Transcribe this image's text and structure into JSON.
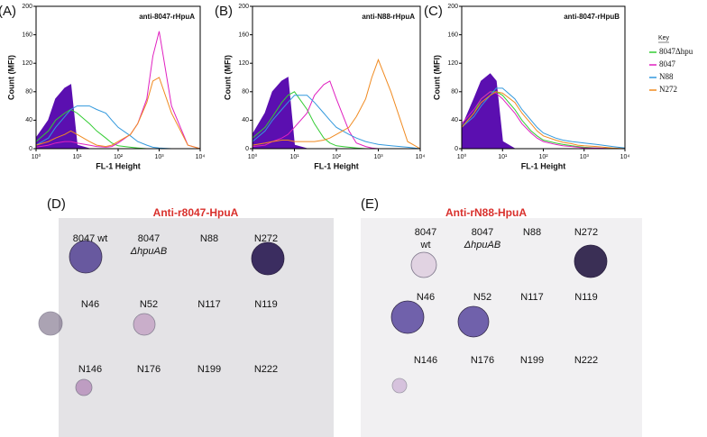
{
  "chart_data": [
    {
      "type": "line",
      "panel": "(A)",
      "title": "anti-8047-rHpuA",
      "xlabel": "FL-1 Height",
      "ylabel": "Count (MFI)",
      "xscale": "log",
      "x": [
        1,
        2,
        3,
        5,
        7,
        10,
        20,
        30,
        50,
        70,
        100,
        200,
        300,
        500,
        700,
        1000,
        2000,
        5000,
        10000
      ],
      "xlim": [
        1,
        10000
      ],
      "ylim": [
        0,
        200
      ],
      "xticks": [
        {
          "value": 1,
          "label": "10⁰"
        },
        {
          "value": 10,
          "label": "10¹"
        },
        {
          "value": 100,
          "label": "10²"
        },
        {
          "value": 1000,
          "label": "10³"
        },
        {
          "value": 10000,
          "label": "10⁴"
        }
      ],
      "yticks": [
        0,
        40,
        80,
        120,
        160,
        200
      ],
      "series": [
        {
          "color": "#5b0fb0",
          "fill": true,
          "values": [
            15,
            40,
            70,
            85,
            90,
            5,
            0,
            0,
            0,
            0,
            0,
            0,
            0,
            0,
            0,
            0,
            0,
            0,
            0
          ]
        },
        {
          "color": "#33cc33",
          "values": [
            10,
            25,
            40,
            50,
            55,
            50,
            35,
            25,
            15,
            8,
            4,
            2,
            1,
            0,
            0,
            0,
            0,
            0,
            0
          ]
        },
        {
          "color": "#e020c0",
          "values": [
            2,
            5,
            8,
            10,
            10,
            8,
            5,
            3,
            2,
            3,
            8,
            20,
            35,
            70,
            130,
            165,
            60,
            5,
            0
          ]
        },
        {
          "color": "#3399dd",
          "values": [
            5,
            15,
            30,
            45,
            55,
            60,
            60,
            55,
            50,
            40,
            30,
            18,
            10,
            5,
            2,
            1,
            0,
            0,
            0
          ]
        },
        {
          "color": "#f08a20",
          "values": [
            5,
            10,
            15,
            20,
            25,
            20,
            10,
            5,
            3,
            5,
            10,
            20,
            35,
            65,
            95,
            100,
            50,
            5,
            0
          ]
        }
      ]
    },
    {
      "type": "line",
      "panel": "(B)",
      "title": "anti-N88-rHpuA",
      "xlabel": "FL-1 Height",
      "ylabel": "Count (MFI)",
      "xscale": "log",
      "x": [
        1,
        2,
        3,
        5,
        7,
        10,
        20,
        30,
        50,
        70,
        100,
        200,
        300,
        500,
        700,
        1000,
        2000,
        5000,
        10000
      ],
      "xlim": [
        1,
        10000
      ],
      "ylim": [
        0,
        200
      ],
      "xticks": [
        {
          "value": 1,
          "label": "10⁰"
        },
        {
          "value": 10,
          "label": "10¹"
        },
        {
          "value": 100,
          "label": "10²"
        },
        {
          "value": 1000,
          "label": "10³"
        },
        {
          "value": 10000,
          "label": "10⁴"
        }
      ],
      "yticks": [
        0,
        40,
        80,
        120,
        160,
        200
      ],
      "series": [
        {
          "color": "#5b0fb0",
          "fill": true,
          "values": [
            20,
            50,
            80,
            95,
            100,
            5,
            0,
            0,
            0,
            0,
            0,
            0,
            0,
            0,
            0,
            0,
            0,
            0,
            0
          ]
        },
        {
          "color": "#33cc33",
          "values": [
            15,
            30,
            45,
            65,
            75,
            80,
            55,
            35,
            15,
            8,
            4,
            2,
            1,
            0,
            0,
            0,
            0,
            0,
            0
          ]
        },
        {
          "color": "#e020c0",
          "values": [
            3,
            5,
            10,
            15,
            20,
            30,
            50,
            75,
            90,
            95,
            70,
            25,
            8,
            3,
            1,
            0,
            0,
            0,
            0
          ]
        },
        {
          "color": "#3399dd",
          "values": [
            10,
            25,
            40,
            55,
            65,
            75,
            75,
            65,
            50,
            40,
            30,
            20,
            15,
            10,
            8,
            6,
            4,
            2,
            0
          ]
        },
        {
          "color": "#f08a20",
          "values": [
            5,
            8,
            10,
            12,
            12,
            10,
            10,
            10,
            12,
            15,
            20,
            30,
            45,
            70,
            100,
            125,
            80,
            10,
            0
          ]
        }
      ]
    },
    {
      "type": "line",
      "panel": "(C)",
      "title": "anti-8047-rHpuB",
      "xlabel": "FL-1 Height",
      "ylabel": "Count (MFI)",
      "xscale": "log",
      "x": [
        1,
        2,
        3,
        5,
        7,
        10,
        20,
        30,
        50,
        70,
        100,
        200,
        300,
        500,
        700,
        1000,
        2000,
        5000,
        10000
      ],
      "xlim": [
        1,
        10000
      ],
      "ylim": [
        0,
        200
      ],
      "xticks": [
        {
          "value": 1,
          "label": "10⁰"
        },
        {
          "value": 10,
          "label": "10¹"
        },
        {
          "value": 100,
          "label": "10²"
        },
        {
          "value": 1000,
          "label": "10³"
        },
        {
          "value": 10000,
          "label": "10⁴"
        }
      ],
      "yticks": [
        0,
        40,
        80,
        120,
        160,
        200
      ],
      "legend_title": "Key",
      "series": [
        {
          "color": "#5b0fb0",
          "fill": true,
          "values": [
            30,
            70,
            95,
            105,
            95,
            10,
            0,
            0,
            0,
            0,
            0,
            0,
            0,
            0,
            0,
            0,
            0,
            0,
            0
          ]
        },
        {
          "name": "8047Δhpu",
          "color": "#33cc33",
          "values": [
            30,
            50,
            70,
            80,
            80,
            75,
            55,
            40,
            25,
            18,
            12,
            8,
            6,
            4,
            3,
            2,
            1,
            0,
            0
          ]
        },
        {
          "name": "8047",
          "color": "#e020c0",
          "values": [
            35,
            55,
            70,
            80,
            78,
            70,
            50,
            35,
            22,
            15,
            10,
            6,
            4,
            3,
            2,
            1,
            1,
            0,
            0
          ]
        },
        {
          "name": "N88",
          "color": "#3399dd",
          "values": [
            30,
            45,
            60,
            75,
            85,
            85,
            70,
            55,
            40,
            30,
            22,
            15,
            12,
            10,
            9,
            8,
            6,
            3,
            1
          ]
        },
        {
          "name": "N272",
          "color": "#f08a20",
          "values": [
            30,
            50,
            65,
            75,
            80,
            78,
            65,
            50,
            35,
            25,
            18,
            12,
            9,
            7,
            5,
            4,
            3,
            1,
            0
          ]
        }
      ]
    }
  ],
  "blots": [
    {
      "panel": "(D)",
      "title": "Anti-r8047-HpuA",
      "samples": [
        [
          "8047 wt"
        ],
        [
          "8047",
          "ΔhpuAB"
        ],
        [
          "N88"
        ],
        [
          "N272"
        ],
        [
          "N46"
        ],
        [
          "N52"
        ],
        [
          "N117"
        ],
        [
          "N119"
        ],
        [
          "N146"
        ],
        [
          "N176"
        ],
        [
          "N199"
        ],
        [
          "N222"
        ]
      ]
    },
    {
      "panel": "(E)",
      "title": "Anti-rN88-HpuA",
      "samples": [
        [
          "8047",
          "wt"
        ],
        [
          "8047",
          "ΔhpuAB"
        ],
        [
          "N88"
        ],
        [
          "N272"
        ],
        [
          "N46"
        ],
        [
          "N52"
        ],
        [
          "N117"
        ],
        [
          "N119"
        ],
        [
          "N146"
        ],
        [
          "N176"
        ],
        [
          "N199"
        ],
        [
          "N222"
        ]
      ]
    }
  ]
}
